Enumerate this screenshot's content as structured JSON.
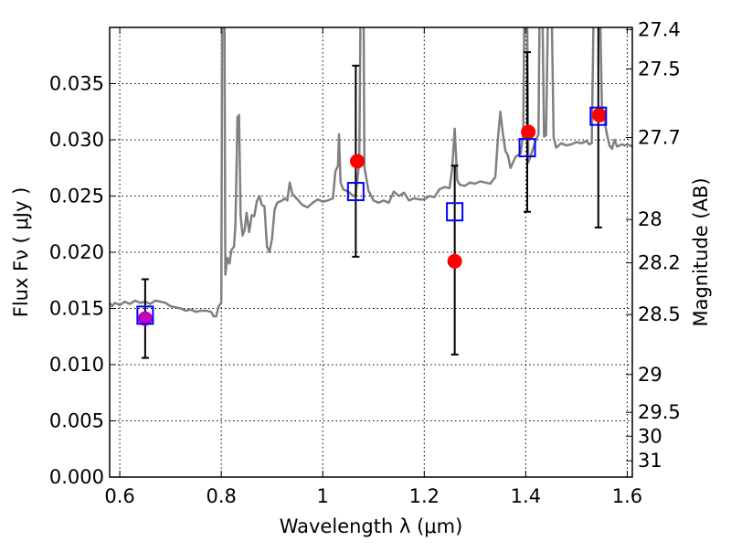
{
  "chart_data": {
    "type": "scatter",
    "title": "",
    "xlabel": "Wavelength  λ (μm)",
    "ylabel": "Flux  Fν  ( μJy )",
    "y2label": "Magnitude (AB)",
    "xlim": [
      0.58,
      1.61
    ],
    "ylim": [
      0.0,
      0.04
    ],
    "grid": true,
    "x_ticks": [
      {
        "value": 0.6,
        "label": "0.6"
      },
      {
        "value": 0.8,
        "label": "0.8"
      },
      {
        "value": 1.0,
        "label": "1"
      },
      {
        "value": 1.2,
        "label": "1.2"
      },
      {
        "value": 1.4,
        "label": "1.4"
      },
      {
        "value": 1.6,
        "label": "1.6"
      }
    ],
    "y_ticks": [
      {
        "value": 0.0,
        "label": "0.000"
      },
      {
        "value": 0.005,
        "label": "0.005"
      },
      {
        "value": 0.01,
        "label": "0.010"
      },
      {
        "value": 0.015,
        "label": "0.015"
      },
      {
        "value": 0.02,
        "label": "0.020"
      },
      {
        "value": 0.025,
        "label": "0.025"
      },
      {
        "value": 0.03,
        "label": "0.030"
      },
      {
        "value": 0.035,
        "label": "0.035"
      }
    ],
    "y2_ticks": [
      {
        "mag": 27.4,
        "label": "27.4"
      },
      {
        "mag": 27.5,
        "label": "27.5"
      },
      {
        "mag": 27.7,
        "label": "27.7"
      },
      {
        "mag": 28.0,
        "label": "28"
      },
      {
        "mag": 28.2,
        "label": "28.2"
      },
      {
        "mag": 28.5,
        "label": "28.5"
      },
      {
        "mag": 29.0,
        "label": "29"
      },
      {
        "mag": 29.5,
        "label": "29.5"
      },
      {
        "mag": 30.0,
        "label": "30"
      },
      {
        "mag": 31.0,
        "label": "31"
      }
    ],
    "series": [
      {
        "type": "line",
        "color": "#808080",
        "points": [
          [
            0.58,
            0.0155
          ],
          [
            0.585,
            0.0152
          ],
          [
            0.59,
            0.0155
          ],
          [
            0.6,
            0.0153
          ],
          [
            0.61,
            0.0156
          ],
          [
            0.62,
            0.0154
          ],
          [
            0.63,
            0.0157
          ],
          [
            0.64,
            0.0155
          ],
          [
            0.65,
            0.0156
          ],
          [
            0.66,
            0.0154
          ],
          [
            0.67,
            0.0157
          ],
          [
            0.68,
            0.0156
          ],
          [
            0.69,
            0.0155
          ],
          [
            0.7,
            0.0152
          ],
          [
            0.71,
            0.0151
          ],
          [
            0.72,
            0.015
          ],
          [
            0.73,
            0.0148
          ],
          [
            0.74,
            0.0149
          ],
          [
            0.75,
            0.0147
          ],
          [
            0.76,
            0.0148
          ],
          [
            0.77,
            0.0148
          ],
          [
            0.78,
            0.0147
          ],
          [
            0.785,
            0.0143
          ],
          [
            0.79,
            0.0143
          ],
          [
            0.795,
            0.0152
          ],
          [
            0.8,
            0.0155
          ],
          [
            0.802,
            0.045
          ],
          [
            0.806,
            0.045
          ],
          [
            0.808,
            0.018
          ],
          [
            0.812,
            0.0195
          ],
          [
            0.816,
            0.019
          ],
          [
            0.82,
            0.0202
          ],
          [
            0.825,
            0.0205
          ],
          [
            0.828,
            0.0225
          ],
          [
            0.832,
            0.032
          ],
          [
            0.835,
            0.0322
          ],
          [
            0.838,
            0.0233
          ],
          [
            0.842,
            0.0215
          ],
          [
            0.846,
            0.022
          ],
          [
            0.85,
            0.0235
          ],
          [
            0.855,
            0.0218
          ],
          [
            0.86,
            0.0233
          ],
          [
            0.865,
            0.0232
          ],
          [
            0.87,
            0.0245
          ],
          [
            0.875,
            0.025
          ],
          [
            0.88,
            0.0242
          ],
          [
            0.885,
            0.0241
          ],
          [
            0.89,
            0.0205
          ],
          [
            0.895,
            0.02
          ],
          [
            0.9,
            0.0212
          ],
          [
            0.905,
            0.0238
          ],
          [
            0.91,
            0.0244
          ],
          [
            0.92,
            0.0246
          ],
          [
            0.925,
            0.0248
          ],
          [
            0.93,
            0.0246
          ],
          [
            0.935,
            0.0262
          ],
          [
            0.94,
            0.0252
          ],
          [
            0.95,
            0.0247
          ],
          [
            0.96,
            0.0242
          ],
          [
            0.97,
            0.024
          ],
          [
            0.98,
            0.0244
          ],
          [
            0.99,
            0.0247
          ],
          [
            1.0,
            0.0245
          ],
          [
            1.01,
            0.0246
          ],
          [
            1.02,
            0.0248
          ],
          [
            1.025,
            0.0272
          ],
          [
            1.03,
            0.0277
          ],
          [
            1.032,
            0.0305
          ],
          [
            1.035,
            0.0262
          ],
          [
            1.04,
            0.0256
          ],
          [
            1.05,
            0.0254
          ],
          [
            1.06,
            0.025
          ],
          [
            1.065,
            0.0251
          ],
          [
            1.072,
            0.028
          ],
          [
            1.075,
            0.045
          ],
          [
            1.08,
            0.045
          ],
          [
            1.082,
            0.0276
          ],
          [
            1.09,
            0.0255
          ],
          [
            1.1,
            0.0246
          ],
          [
            1.11,
            0.0244
          ],
          [
            1.12,
            0.0246
          ],
          [
            1.13,
            0.0244
          ],
          [
            1.14,
            0.0254
          ],
          [
            1.15,
            0.025
          ],
          [
            1.16,
            0.0253
          ],
          [
            1.17,
            0.0246
          ],
          [
            1.18,
            0.0248
          ],
          [
            1.19,
            0.0247
          ],
          [
            1.2,
            0.0247
          ],
          [
            1.21,
            0.025
          ],
          [
            1.22,
            0.0249
          ],
          [
            1.23,
            0.0256
          ],
          [
            1.24,
            0.0258
          ],
          [
            1.25,
            0.0257
          ],
          [
            1.255,
            0.0275
          ],
          [
            1.26,
            0.031
          ],
          [
            1.265,
            0.0264
          ],
          [
            1.27,
            0.026
          ],
          [
            1.28,
            0.0259
          ],
          [
            1.29,
            0.0262
          ],
          [
            1.3,
            0.0261
          ],
          [
            1.31,
            0.0263
          ],
          [
            1.32,
            0.0262
          ],
          [
            1.33,
            0.0261
          ],
          [
            1.34,
            0.0267
          ],
          [
            1.345,
            0.03
          ],
          [
            1.35,
            0.0325
          ],
          [
            1.355,
            0.0305
          ],
          [
            1.36,
            0.029
          ],
          [
            1.365,
            0.0286
          ],
          [
            1.37,
            0.0275
          ],
          [
            1.38,
            0.0285
          ],
          [
            1.39,
            0.0288
          ],
          [
            1.395,
            0.0305
          ],
          [
            1.398,
            0.045
          ],
          [
            1.402,
            0.045
          ],
          [
            1.405,
            0.028
          ],
          [
            1.41,
            0.0286
          ],
          [
            1.42,
            0.03
          ],
          [
            1.425,
            0.0305
          ],
          [
            1.428,
            0.045
          ],
          [
            1.432,
            0.045
          ],
          [
            1.436,
            0.0303
          ],
          [
            1.44,
            0.0304
          ],
          [
            1.445,
            0.045
          ],
          [
            1.45,
            0.045
          ],
          [
            1.455,
            0.0302
          ],
          [
            1.46,
            0.0293
          ],
          [
            1.47,
            0.0297
          ],
          [
            1.48,
            0.0295
          ],
          [
            1.49,
            0.0296
          ],
          [
            1.5,
            0.0298
          ],
          [
            1.51,
            0.0297
          ],
          [
            1.52,
            0.0299
          ],
          [
            1.525,
            0.0296
          ],
          [
            1.53,
            0.0297
          ],
          [
            1.535,
            0.045
          ],
          [
            1.545,
            0.045
          ],
          [
            1.55,
            0.033
          ],
          [
            1.56,
            0.0305
          ],
          [
            1.565,
            0.0295
          ],
          [
            1.57,
            0.0292
          ],
          [
            1.575,
            0.03
          ],
          [
            1.58,
            0.0294
          ],
          [
            1.59,
            0.0296
          ],
          [
            1.595,
            0.0295
          ],
          [
            1.6,
            0.0296
          ],
          [
            1.61,
            0.0294
          ]
        ]
      },
      {
        "type": "points",
        "marker": "circle",
        "color": "#ff0000",
        "x": [
          1.068,
          1.26,
          1.405,
          1.545
        ],
        "y": [
          0.0281,
          0.0192,
          0.0307,
          0.0322
        ]
      },
      {
        "type": "points",
        "marker": "circle",
        "color": "#bf00bf",
        "x": [
          0.65
        ],
        "y": [
          0.0141
        ]
      },
      {
        "type": "points",
        "marker": "open-square",
        "color": "#0000ff",
        "x": [
          0.65,
          1.065,
          1.26,
          1.403,
          1.543
        ],
        "y": [
          0.0144,
          0.0254,
          0.0236,
          0.0293,
          0.0321
        ]
      },
      {
        "type": "errorbars",
        "color": "#000000",
        "x": [
          0.65,
          1.065,
          1.26,
          1.403,
          1.543
        ],
        "ylow": [
          0.0106,
          0.0196,
          0.0109,
          0.0236,
          0.0222
        ],
        "yhigh": [
          0.0176,
          0.0366,
          0.0277,
          0.0378,
          0.045
        ]
      }
    ]
  }
}
